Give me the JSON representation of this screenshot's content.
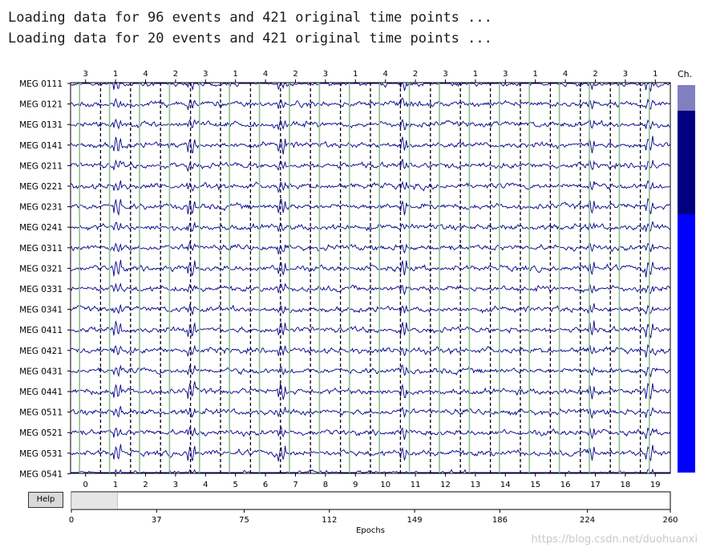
{
  "console": {
    "lines": [
      "Loading data for 96 events and 421 original time points ...",
      "Loading data for 20 events and 421 original time points ..."
    ]
  },
  "channels": [
    "MEG 0111",
    "MEG 0121",
    "MEG 0131",
    "MEG 0141",
    "MEG 0211",
    "MEG 0221",
    "MEG 0231",
    "MEG 0241",
    "MEG 0311",
    "MEG 0321",
    "MEG 0331",
    "MEG 0341",
    "MEG 0411",
    "MEG 0421",
    "MEG 0431",
    "MEG 0441",
    "MEG 0511",
    "MEG 0521",
    "MEG 0531",
    "MEG 0541"
  ],
  "event_ids": [
    "3",
    "1",
    "4",
    "2",
    "3",
    "1",
    "4",
    "2",
    "3",
    "1",
    "4",
    "2",
    "3",
    "1",
    "3",
    "1",
    "4",
    "2",
    "3",
    "1"
  ],
  "epoch_ticks": [
    "0",
    "1",
    "2",
    "3",
    "4",
    "5",
    "6",
    "7",
    "8",
    "9",
    "10",
    "11",
    "12",
    "13",
    "14",
    "15",
    "16",
    "17",
    "18",
    "19"
  ],
  "scroll": {
    "ticks": [
      "0",
      "37",
      "75",
      "112",
      "149",
      "186",
      "224",
      "260"
    ],
    "xlabel": "Epochs",
    "view_start": 0,
    "view_end": 20,
    "total": 260
  },
  "side_bar": {
    "label": "Ch.",
    "view_fraction_start": 0,
    "view_fraction_end": 0.5
  },
  "help_label": "Help",
  "watermark": "https://blog.csdn.net/duohuanxi",
  "colors": {
    "trace": "#00008b",
    "epoch_border": "#000000",
    "event_line": "#90c090",
    "scroll_fill": "#e6e6e6",
    "side_light": "#8080c0",
    "side_dark": "#000080",
    "side_bright": "#0000ff"
  }
}
